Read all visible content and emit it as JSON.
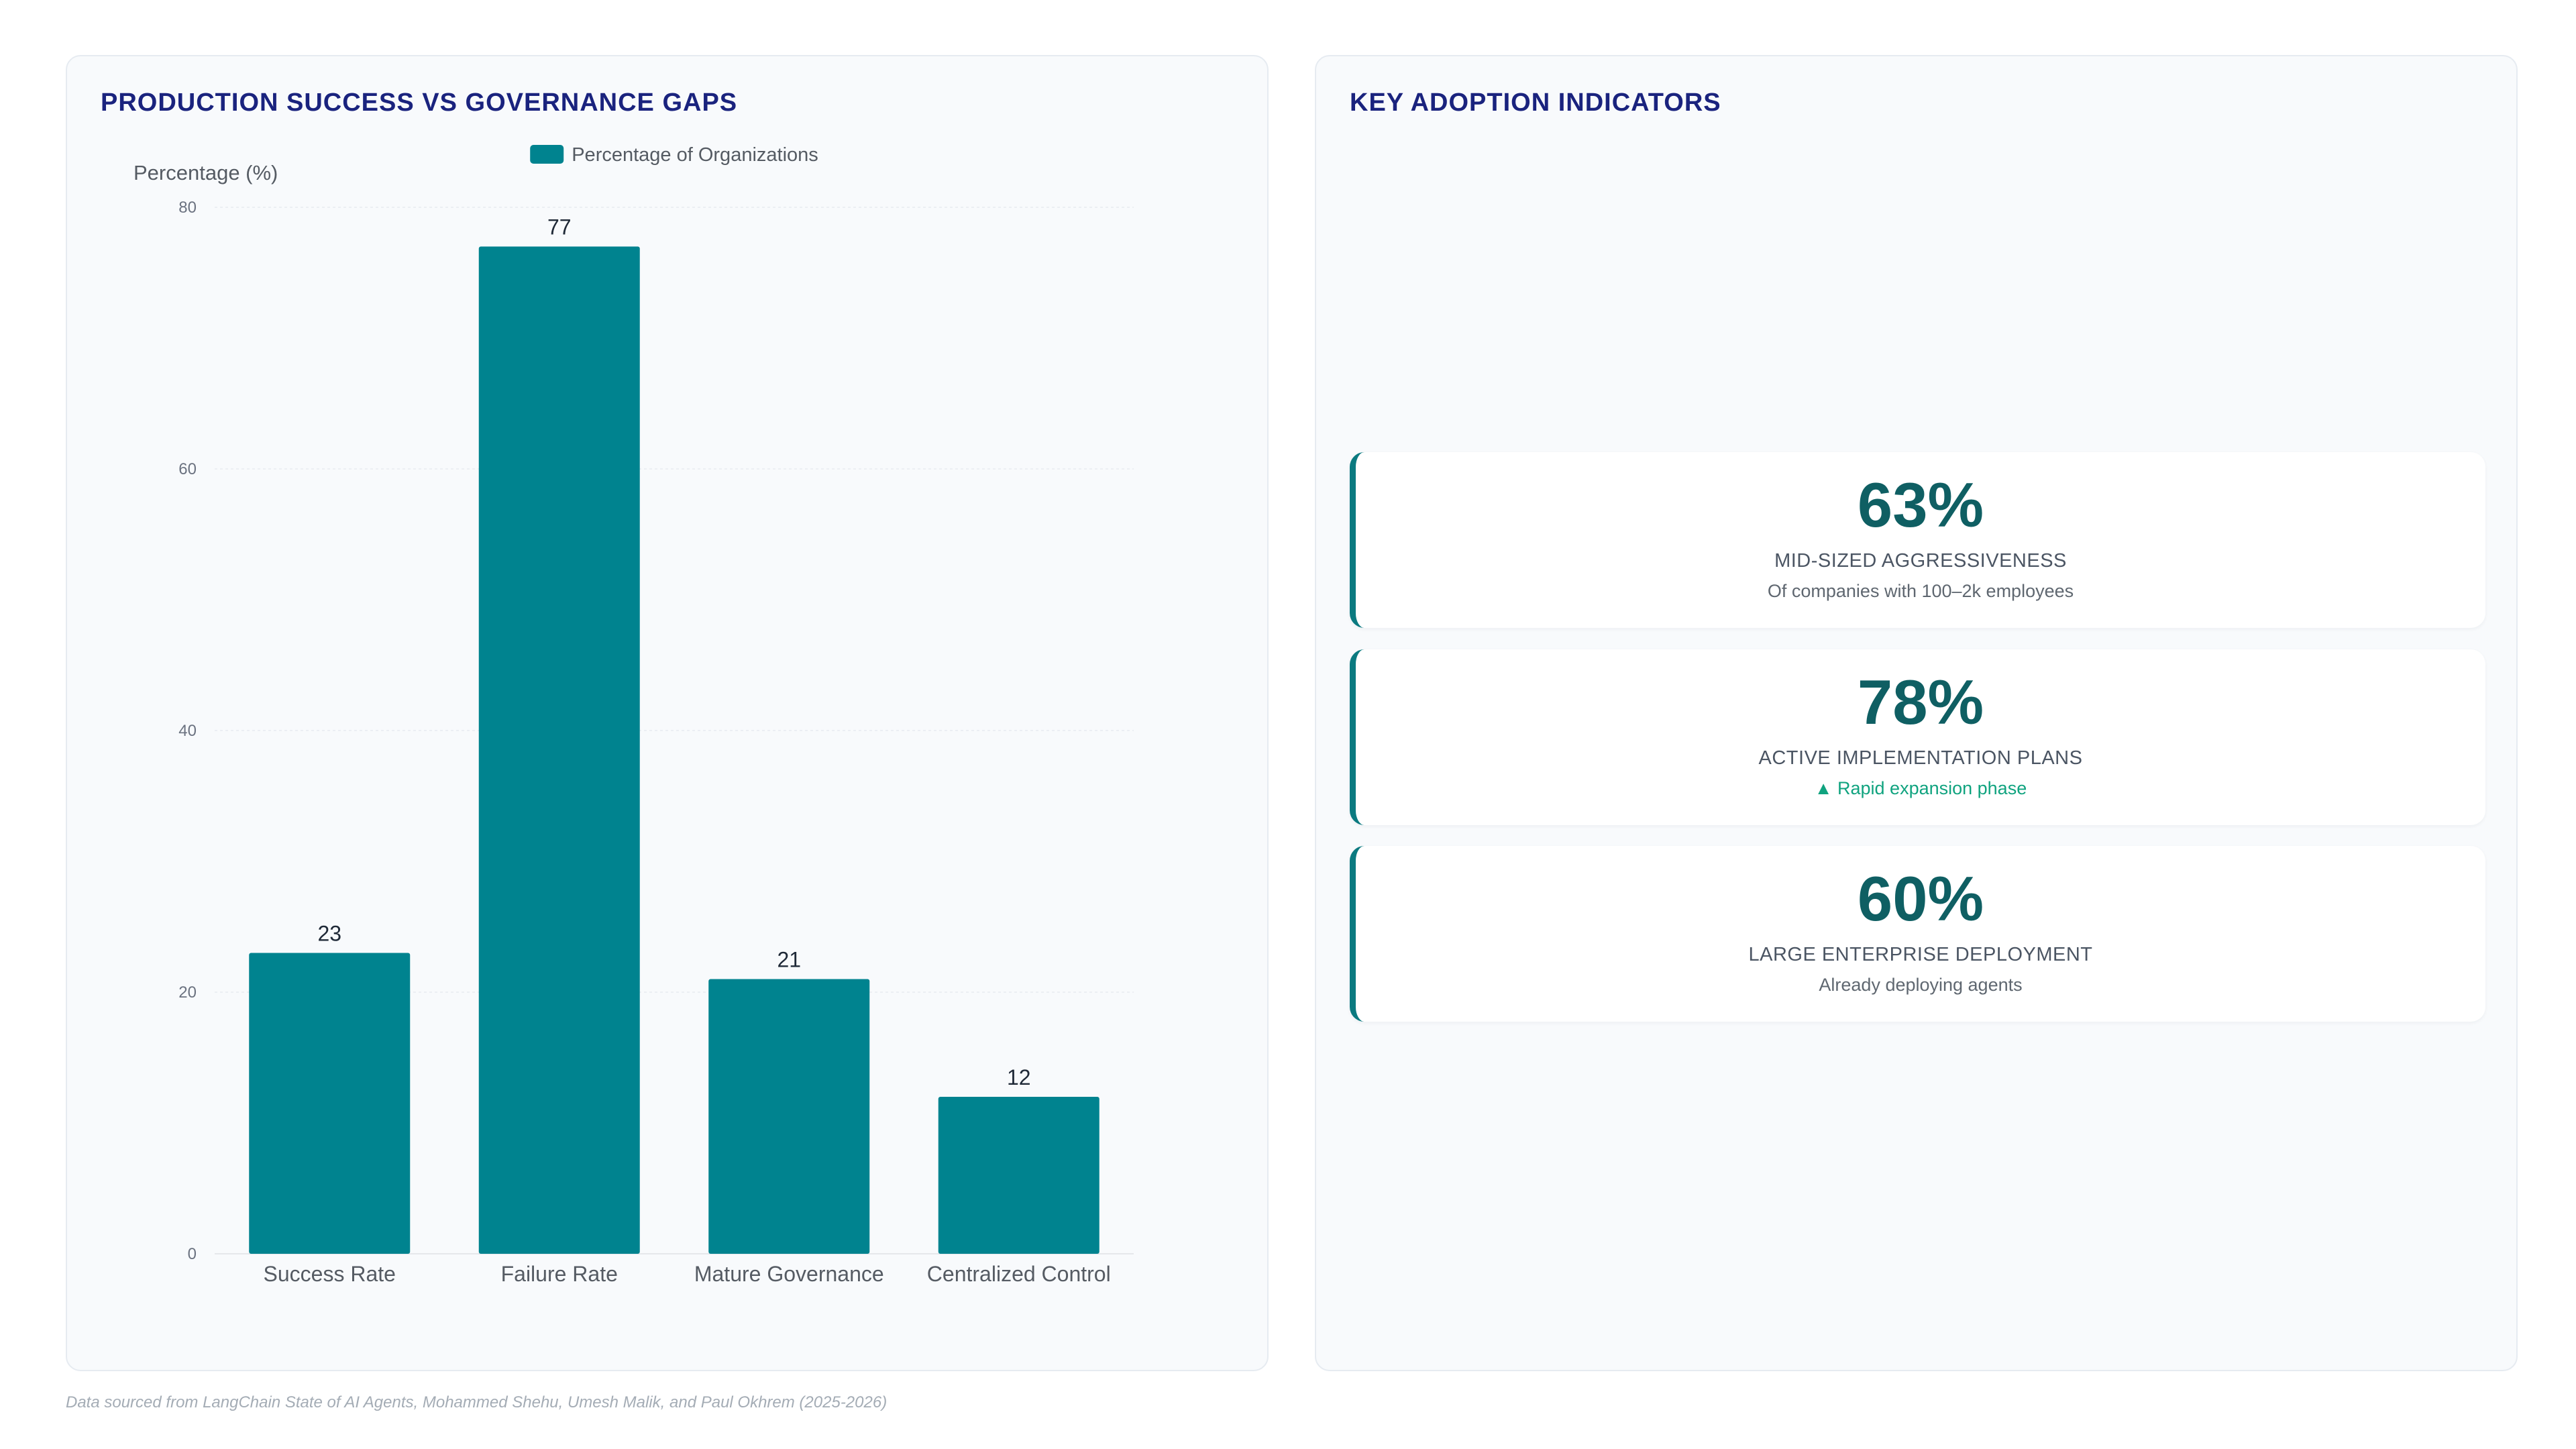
{
  "left_panel": {
    "title": "PRODUCTION SUCCESS VS GOVERNANCE GAPS"
  },
  "right_panel": {
    "title": "KEY ADOPTION INDICATORS",
    "cards": [
      {
        "value": "63%",
        "label": "MID-SIZED AGGRESSIVENESS",
        "sub": "Of companies with 100–2k employees",
        "sub_style": "muted"
      },
      {
        "value": "78%",
        "label": "ACTIVE IMPLEMENTATION PLANS",
        "sub": "▲ Rapid expansion phase",
        "sub_style": "accent"
      },
      {
        "value": "60%",
        "label": "LARGE ENTERPRISE DEPLOYMENT",
        "sub": "Already deploying agents",
        "sub_style": "muted"
      }
    ]
  },
  "colors": {
    "bar": "#00838f",
    "title": "#1a237e",
    "kpi_value": "#0f5f63",
    "kpi_border": "#0b7a80",
    "accent_text": "#10a37f"
  },
  "chart_data": {
    "type": "bar",
    "categories": [
      "Success Rate",
      "Failure Rate",
      "Mature Governance",
      "Centralized Control"
    ],
    "series": [
      {
        "name": "Percentage of Organizations",
        "values": [
          23,
          77,
          21,
          12
        ]
      }
    ],
    "ylabel": "Percentage (%)",
    "ylim": [
      0,
      80
    ],
    "yticks": [
      0,
      20,
      40,
      60,
      80
    ],
    "data_labels": true,
    "legend": "top-center",
    "grid": true
  },
  "footer": {
    "note": "Data sourced from LangChain State of AI Agents, Mohammed Shehu, Umesh Malik, and Paul Okhrem (2025-2026)"
  }
}
